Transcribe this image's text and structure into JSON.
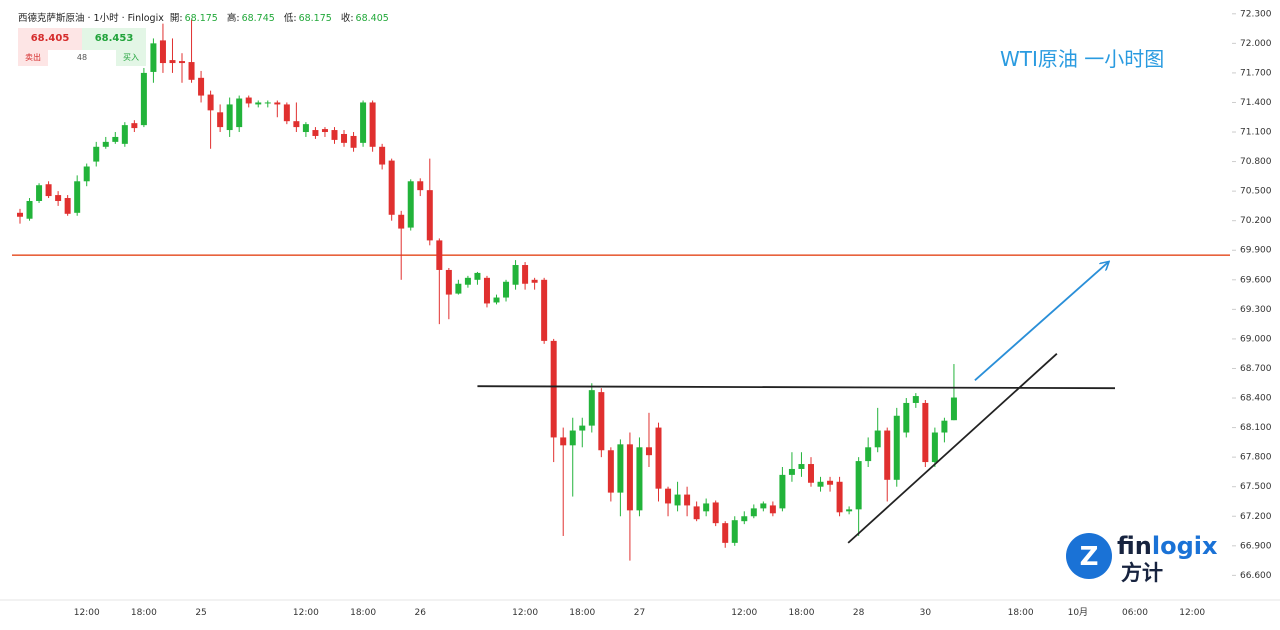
{
  "header": {
    "symbol": "西德克萨斯原油 · 1小时 · Finlogix",
    "ohlc": [
      {
        "label": "開:",
        "value": "68.175"
      },
      {
        "label": "高:",
        "value": "68.745"
      },
      {
        "label": "低:",
        "value": "68.175"
      },
      {
        "label": "收:",
        "value": "68.405"
      }
    ]
  },
  "widget": {
    "sell_price": "68.405",
    "buy_price": "68.453",
    "sell": "卖出",
    "spread": "48",
    "buy": "买入"
  },
  "logo": {
    "name_a": "fin",
    "name_b": "logix",
    "cn": "方计"
  },
  "chart_data": {
    "type": "candlestick",
    "title": "WTI原油 一小时图",
    "up_color": "#22b33a",
    "down_color": "#e0302f",
    "ylim": [
      66.35,
      72.44
    ],
    "yticks": [
      {
        "value": 72.3,
        "label": "72.300"
      },
      {
        "value": 72.0,
        "label": "72.000"
      },
      {
        "value": 71.7,
        "label": "71.700"
      },
      {
        "value": 71.4,
        "label": "71.400"
      },
      {
        "value": 71.1,
        "label": "71.100"
      },
      {
        "value": 70.8,
        "label": "70.800"
      },
      {
        "value": 70.5,
        "label": "70.500"
      },
      {
        "value": 70.2,
        "label": "70.200"
      },
      {
        "value": 69.9,
        "label": "69.900"
      },
      {
        "value": 69.6,
        "label": "69.600"
      },
      {
        "value": 69.3,
        "label": "69.300"
      },
      {
        "value": 69.0,
        "label": "69.000"
      },
      {
        "value": 68.7,
        "label": "68.700"
      },
      {
        "value": 68.4,
        "label": "68.400"
      },
      {
        "value": 68.1,
        "label": "68.100"
      },
      {
        "value": 67.8,
        "label": "67.800"
      },
      {
        "value": 67.5,
        "label": "67.500"
      },
      {
        "value": 67.2,
        "label": "67.200"
      },
      {
        "value": 66.9,
        "label": "66.900"
      },
      {
        "value": 66.6,
        "label": "66.600"
      }
    ],
    "categories": [
      null,
      null,
      null,
      null,
      null,
      null,
      null,
      "12:00",
      null,
      null,
      null,
      null,
      null,
      "18:00",
      null,
      null,
      null,
      null,
      null,
      "25",
      null,
      null,
      null,
      null,
      null,
      null,
      null,
      null,
      null,
      null,
      "12:00",
      null,
      null,
      null,
      null,
      null,
      "18:00",
      null,
      null,
      null,
      null,
      null,
      "26",
      null,
      null,
      null,
      null,
      null,
      null,
      null,
      null,
      null,
      null,
      "12:00",
      null,
      null,
      null,
      null,
      null,
      "18:00",
      null,
      null,
      null,
      null,
      null,
      "27",
      null,
      null,
      null,
      null,
      null,
      null,
      null,
      null,
      null,
      null,
      "12:00",
      null,
      null,
      null,
      null,
      null,
      "18:00",
      null,
      null,
      null,
      null,
      null,
      "28",
      null,
      null,
      null,
      null,
      null,
      null,
      "30",
      null,
      null,
      null,
      null,
      null,
      null,
      null,
      null,
      null,
      "18:00",
      null,
      null,
      null,
      null,
      null,
      "10月",
      null,
      null,
      null,
      null,
      null,
      "06:00",
      null,
      null,
      null,
      null,
      null,
      "12:00",
      null,
      null,
      null
    ],
    "open": [
      70.28,
      70.22,
      70.4,
      70.57,
      70.46,
      70.43,
      70.28,
      70.6,
      70.8,
      70.95,
      71.0,
      70.98,
      71.19,
      71.17,
      71.71,
      72.03,
      71.83,
      71.82,
      71.81,
      71.65,
      71.48,
      71.3,
      71.12,
      71.15,
      71.45,
      71.38,
      71.39,
      71.4,
      71.38,
      71.21,
      71.1,
      71.12,
      71.13,
      71.12,
      71.08,
      71.06,
      70.99,
      71.4,
      70.95,
      70.81,
      70.26,
      70.13,
      70.6,
      70.51,
      70.0,
      69.7,
      69.46,
      69.55,
      69.6,
      69.62,
      69.37,
      69.42,
      69.55,
      69.75,
      69.6,
      69.6,
      68.98,
      68.0,
      67.92,
      68.07,
      68.12,
      68.46,
      67.87,
      67.44,
      67.93,
      67.26,
      67.9,
      68.1,
      67.48,
      67.31,
      67.42,
      67.3,
      67.25,
      67.34,
      67.13,
      66.93,
      67.15,
      67.2,
      67.28,
      67.31,
      67.28,
      67.62,
      67.68,
      67.73,
      67.5,
      67.56,
      67.55,
      67.25,
      67.27,
      67.76,
      67.9,
      68.07,
      67.57,
      68.05,
      68.35,
      68.35,
      67.75,
      68.05,
      68.175,
      null,
      null,
      null,
      null,
      null,
      null,
      null,
      null,
      null,
      null,
      null,
      null,
      null,
      null,
      null,
      null,
      null,
      null,
      null,
      null,
      null,
      null,
      null,
      null,
      null,
      null,
      null,
      null
    ],
    "high": [
      70.32,
      70.43,
      70.58,
      70.6,
      70.5,
      70.46,
      70.66,
      70.78,
      71.0,
      71.05,
      71.1,
      71.2,
      71.22,
      71.75,
      72.05,
      72.2,
      72.05,
      71.9,
      72.24,
      71.72,
      71.52,
      71.38,
      71.45,
      71.47,
      71.47,
      71.42,
      71.42,
      71.42,
      71.4,
      71.4,
      71.2,
      71.15,
      71.15,
      71.15,
      71.12,
      71.1,
      71.42,
      71.42,
      70.98,
      70.83,
      70.3,
      70.62,
      70.63,
      70.83,
      70.02,
      69.72,
      69.6,
      69.64,
      69.68,
      69.64,
      69.45,
      69.6,
      69.8,
      69.78,
      69.62,
      69.62,
      69.0,
      68.1,
      68.2,
      68.2,
      68.55,
      68.5,
      67.9,
      67.98,
      68.05,
      68.0,
      68.25,
      68.15,
      67.5,
      67.55,
      67.5,
      67.35,
      67.38,
      67.36,
      67.15,
      67.2,
      67.25,
      67.32,
      67.35,
      67.35,
      67.7,
      67.85,
      67.85,
      67.8,
      67.6,
      67.6,
      67.6,
      67.3,
      67.8,
      68.0,
      68.3,
      68.1,
      68.3,
      68.4,
      68.45,
      68.38,
      68.1,
      68.2,
      68.745,
      null,
      null,
      null,
      null,
      null,
      null,
      null,
      null,
      null,
      null,
      null,
      null,
      null,
      null,
      null,
      null,
      null,
      null,
      null,
      null,
      null,
      null,
      null,
      null,
      null,
      null,
      null,
      null
    ],
    "low": [
      70.17,
      70.2,
      70.38,
      70.43,
      70.35,
      70.25,
      70.25,
      70.55,
      70.75,
      70.93,
      70.98,
      70.95,
      71.1,
      71.15,
      71.6,
      71.7,
      71.7,
      71.6,
      71.6,
      71.4,
      70.93,
      71.1,
      71.05,
      71.1,
      71.35,
      71.35,
      71.35,
      71.25,
      71.18,
      71.1,
      71.05,
      71.03,
      71.05,
      70.98,
      70.95,
      70.9,
      70.95,
      70.9,
      70.72,
      70.2,
      69.6,
      70.1,
      70.45,
      69.95,
      69.15,
      69.2,
      69.45,
      69.52,
      69.55,
      69.32,
      69.35,
      69.38,
      69.5,
      69.5,
      69.5,
      68.95,
      67.75,
      67.0,
      67.4,
      67.9,
      68.05,
      67.8,
      67.35,
      67.2,
      66.75,
      67.2,
      67.7,
      67.35,
      67.2,
      67.25,
      67.2,
      67.15,
      67.2,
      67.1,
      66.88,
      66.9,
      67.12,
      67.18,
      67.25,
      67.2,
      67.25,
      67.55,
      67.6,
      67.5,
      67.45,
      67.45,
      67.2,
      67.22,
      67.0,
      67.7,
      67.85,
      67.35,
      67.5,
      68.0,
      68.3,
      67.7,
      67.7,
      67.95,
      68.175,
      null,
      null,
      null,
      null,
      null,
      null,
      null,
      null,
      null,
      null,
      null,
      null,
      null,
      null,
      null,
      null,
      null,
      null,
      null,
      null,
      null,
      null,
      null,
      null,
      null,
      null,
      null,
      null
    ],
    "close": [
      70.24,
      70.4,
      70.56,
      70.45,
      70.4,
      70.27,
      70.6,
      70.75,
      70.95,
      71.0,
      71.05,
      71.17,
      71.14,
      71.7,
      72.0,
      71.8,
      71.8,
      71.8,
      71.63,
      71.47,
      71.32,
      71.15,
      71.38,
      71.44,
      71.39,
      71.4,
      71.4,
      71.38,
      71.21,
      71.15,
      71.18,
      71.06,
      71.1,
      71.02,
      70.99,
      70.94,
      71.4,
      70.95,
      70.77,
      70.26,
      70.12,
      70.6,
      70.51,
      70.0,
      69.7,
      69.45,
      69.56,
      69.62,
      69.67,
      69.36,
      69.42,
      69.58,
      69.75,
      69.56,
      69.57,
      68.98,
      68.0,
      67.92,
      68.07,
      68.12,
      68.48,
      67.87,
      67.44,
      67.93,
      67.26,
      67.9,
      67.82,
      67.48,
      67.33,
      67.42,
      67.31,
      67.17,
      67.33,
      67.13,
      66.93,
      67.16,
      67.2,
      67.28,
      67.33,
      67.23,
      67.62,
      67.68,
      67.73,
      67.54,
      67.55,
      67.52,
      67.24,
      67.27,
      67.76,
      67.9,
      68.07,
      67.57,
      68.22,
      68.35,
      68.42,
      67.75,
      68.05,
      68.17,
      68.405,
      null,
      null,
      null,
      null,
      null,
      null,
      null,
      null,
      null,
      null,
      null,
      null,
      null,
      null,
      null,
      null,
      null,
      null,
      null,
      null,
      null,
      null,
      null,
      null,
      null,
      null,
      null,
      null
    ],
    "hlines": [
      {
        "y": 69.85,
        "color": "#e8623c"
      }
    ],
    "lines": [
      {
        "x": [
          48,
          114.9
        ],
        "y": [
          68.52,
          68.5
        ],
        "color": "#222222"
      },
      {
        "x": [
          86.9,
          108.8
        ],
        "y": [
          66.93,
          68.85
        ],
        "color": "#222222"
      },
      {
        "x": [
          100.2,
          114.2
        ],
        "y": [
          68.58,
          69.78
        ],
        "color": "#2a8fd8",
        "arrow": true
      }
    ]
  }
}
